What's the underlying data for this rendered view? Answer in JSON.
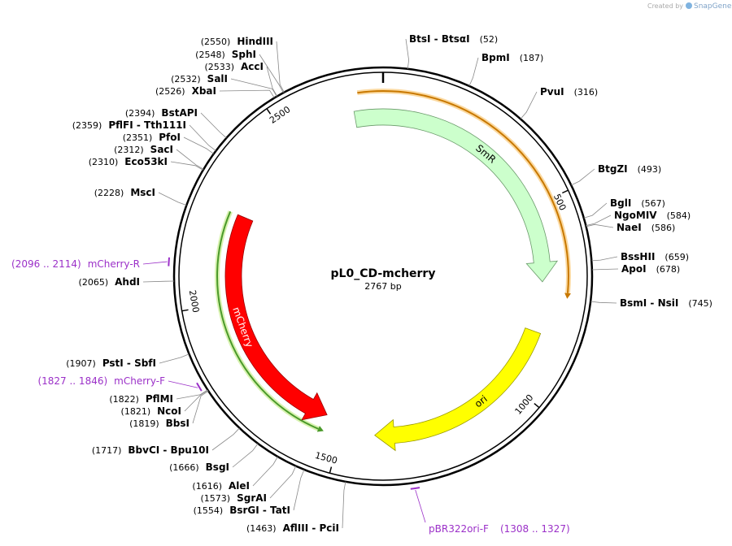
{
  "header": {
    "credit": "Created by",
    "brand": "SnapGene"
  },
  "plasmid": {
    "name": "pL0_CD-mcherry",
    "length": "2767 bp"
  },
  "ticks": [
    500,
    1000,
    1500,
    2000,
    2500
  ],
  "sites": [
    {
      "name": "BtsI - BtsαI",
      "position": "(52)"
    },
    {
      "name": "BpmI",
      "position": "(187)"
    },
    {
      "name": "PvuI",
      "position": "(316)"
    },
    {
      "name": "BtgZI",
      "position": "(493)"
    },
    {
      "name": "BglI",
      "position": "(567)"
    },
    {
      "name": "NgoMIV",
      "position": "(584)"
    },
    {
      "name": "NaeI",
      "position": "(586)"
    },
    {
      "name": "BssHII",
      "position": "(659)"
    },
    {
      "name": "ApoI",
      "position": "(678)"
    },
    {
      "name": "BsmI - NsiI",
      "position": "(745)"
    },
    {
      "name": "HindIII",
      "position": "(2550)"
    },
    {
      "name": "SphI",
      "position": "(2548)"
    },
    {
      "name": "AccI",
      "position": "(2533)"
    },
    {
      "name": "SalI",
      "position": "(2532)"
    },
    {
      "name": "XbaI",
      "position": "(2526)"
    },
    {
      "name": "BstAPI",
      "position": "(2394)"
    },
    {
      "name": "PflFI - Tth111I",
      "position": "(2359)"
    },
    {
      "name": "PfoI",
      "position": "(2351)"
    },
    {
      "name": "SacI",
      "position": "(2312)"
    },
    {
      "name": "Eco53kI",
      "position": "(2310)"
    },
    {
      "name": "MscI",
      "position": "(2228)"
    },
    {
      "name": "AhdI",
      "position": "(2065)"
    },
    {
      "name": "PstI - SbfI",
      "position": "(1907)"
    },
    {
      "name": "PflMI",
      "position": "(1822)"
    },
    {
      "name": "NcoI",
      "position": "(1821)"
    },
    {
      "name": "BbsI",
      "position": "(1819)"
    },
    {
      "name": "BbvCI - Bpu10I",
      "position": "(1717)"
    },
    {
      "name": "BsgI",
      "position": "(1666)"
    },
    {
      "name": "AleI",
      "position": "(1616)"
    },
    {
      "name": "SgrAI",
      "position": "(1573)"
    },
    {
      "name": "BsrGI - TatI",
      "position": "(1554)"
    },
    {
      "name": "AflIII - PciI",
      "position": "(1463)"
    }
  ],
  "primers": [
    {
      "name": "mCherry-R",
      "position": "(2096 .. 2114)"
    },
    {
      "name": "mCherry-F",
      "position": "(1827 .. 1846)"
    },
    {
      "name": "pBR322ori-F",
      "position": "(1308 .. 1327)"
    }
  ],
  "features": [
    {
      "label": "SmR"
    },
    {
      "label": "ori"
    },
    {
      "label": "mCherry"
    }
  ]
}
